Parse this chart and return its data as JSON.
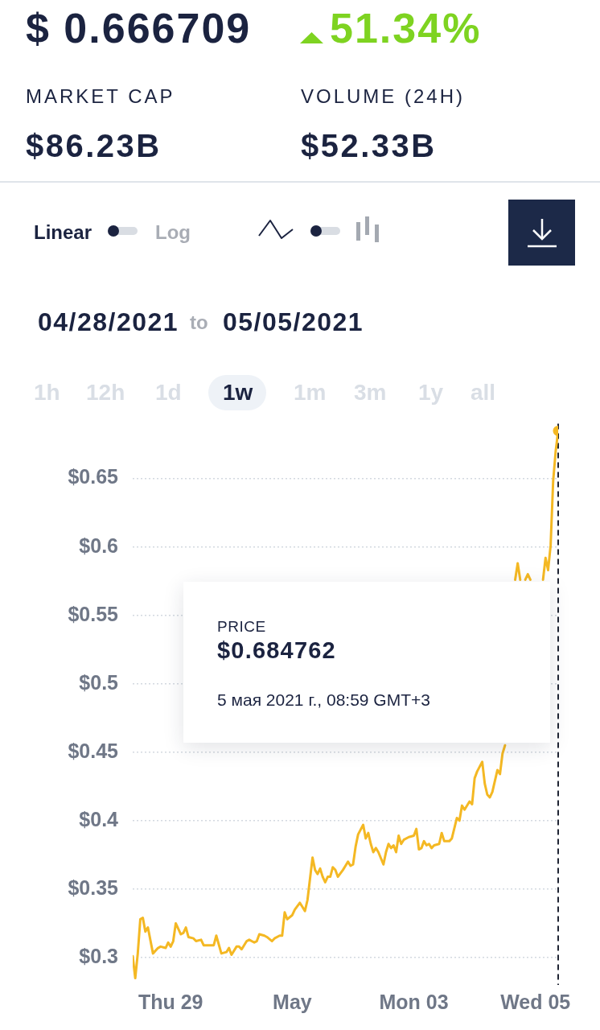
{
  "chart_data": {
    "type": "line",
    "annotations": [
      "$ 0.666709",
      "51.34%",
      "MARKET CAP",
      "$86.23B",
      "VOLUME (24H)",
      "$52.33B",
      "Linear",
      "Log",
      "04/28/2021",
      "to",
      "05/05/2021",
      "1h",
      "12h",
      "1d",
      "1w",
      "1m",
      "3m",
      "1y",
      "all",
      "PRICE",
      "$0.684762",
      "5 мая 2021 г., 08:59 GMT+3"
    ],
    "xlim": [
      "2021-04-28T09:00",
      "2021-05-05T08:59"
    ],
    "xticks": [
      {
        "value": "2021-04-29",
        "label": "Thu 29"
      },
      {
        "value": "2021-05-01",
        "label": "May"
      },
      {
        "value": "2021-05-03",
        "label": "Mon 03"
      },
      {
        "value": "2021-05-05",
        "label": "Wed 05"
      }
    ],
    "ylim": [
      0.28,
      0.69
    ],
    "yticks": [
      {
        "value": 0.3,
        "label": "$0.3"
      },
      {
        "value": 0.35,
        "label": "$0.35"
      },
      {
        "value": 0.4,
        "label": "$0.4"
      },
      {
        "value": 0.45,
        "label": "$0.45"
      },
      {
        "value": 0.5,
        "label": "$0.5"
      },
      {
        "value": 0.55,
        "label": "$0.55"
      },
      {
        "value": 0.6,
        "label": "$0.6"
      },
      {
        "value": 0.65,
        "label": "$0.65"
      }
    ],
    "grid": "y",
    "ref_lines": [
      {
        "axis": "x",
        "value": "2021-05-05T08:59",
        "color": "#1f2433",
        "line_style": "dashed"
      }
    ],
    "series": [
      {
        "color": "#f4b823",
        "x": [
          "2021-04-28T09:00",
          "2021-04-28T10:00",
          "2021-04-28T11:00",
          "2021-04-28T12:00",
          "2021-04-28T13:00",
          "2021-04-28T14:00",
          "2021-04-28T15:00",
          "2021-04-28T17:00",
          "2021-04-28T19:00",
          "2021-04-28T20:00",
          "2021-04-28T22:00",
          "2021-04-28T23:00",
          "2021-04-29T00:00",
          "2021-04-29T01:00",
          "2021-04-29T02:00",
          "2021-04-29T04:00",
          "2021-04-29T05:00",
          "2021-04-29T06:00",
          "2021-04-29T07:00",
          "2021-04-29T09:00",
          "2021-04-29T10:00",
          "2021-04-29T12:00",
          "2021-04-29T13:00",
          "2021-04-29T15:00",
          "2021-04-29T17:00",
          "2021-04-29T18:00",
          "2021-04-29T20:00",
          "2021-04-29T22:00",
          "2021-04-29T23:00",
          "2021-04-30T00:00",
          "2021-04-30T02:00",
          "2021-04-30T03:00",
          "2021-04-30T04:00",
          "2021-04-30T06:00",
          "2021-04-30T07:00",
          "2021-04-30T09:00",
          "2021-04-30T10:00",
          "2021-04-30T11:00",
          "2021-04-30T13:00",
          "2021-04-30T14:00",
          "2021-04-30T16:00",
          "2021-04-30T17:00",
          "2021-04-30T19:00",
          "2021-04-30T20:00",
          "2021-04-30T21:00",
          "2021-04-30T22:00",
          "2021-05-01T00:00",
          "2021-05-01T01:00",
          "2021-05-01T03:00",
          "2021-05-01T04:00",
          "2021-05-01T05:00",
          "2021-05-01T06:00",
          "2021-05-01T08:00",
          "2021-05-01T09:00",
          "2021-05-01T10:00",
          "2021-05-01T11:00",
          "2021-05-01T12:00",
          "2021-05-01T13:00",
          "2021-05-01T14:00",
          "2021-05-01T15:00",
          "2021-05-01T16:00",
          "2021-05-01T17:00",
          "2021-05-01T18:00",
          "2021-05-01T20:00",
          "2021-05-01T21:00",
          "2021-05-01T22:00",
          "2021-05-01T23:00",
          "2021-05-02T00:00",
          "2021-05-02T01:00",
          "2021-05-02T02:00",
          "2021-05-02T04:00",
          "2021-05-02T05:00",
          "2021-05-02T06:00",
          "2021-05-02T07:00",
          "2021-05-02T08:00",
          "2021-05-02T09:00",
          "2021-05-02T10:00",
          "2021-05-02T12:00",
          "2021-05-02T13:00",
          "2021-05-02T14:00",
          "2021-05-02T15:00",
          "2021-05-02T16:00",
          "2021-05-02T17:00",
          "2021-05-02T18:00",
          "2021-05-02T19:00",
          "2021-05-02T20:00",
          "2021-05-02T22:00",
          "2021-05-03T00:00",
          "2021-05-03T01:00",
          "2021-05-03T02:00",
          "2021-05-03T03:00",
          "2021-05-03T04:00",
          "2021-05-03T05:00",
          "2021-05-03T06:00",
          "2021-05-03T07:00",
          "2021-05-03T08:00",
          "2021-05-03T10:00",
          "2021-05-03T11:00",
          "2021-05-03T12:00",
          "2021-05-03T14:00",
          "2021-05-03T15:00",
          "2021-05-03T17:00",
          "2021-05-03T18:00",
          "2021-05-03T19:00",
          "2021-05-03T20:00",
          "2021-05-03T22:00",
          "2021-05-03T23:00",
          "2021-05-04T00:00",
          "2021-05-04T01:00",
          "2021-05-04T03:00",
          "2021-05-04T04:00",
          "2021-05-04T05:00",
          "2021-05-04T06:00",
          "2021-05-04T07:00",
          "2021-05-04T09:00",
          "2021-05-04T10:00",
          "2021-05-04T11:00",
          "2021-05-04T12:00",
          "2021-05-04T13:00",
          "2021-05-04T16:00",
          "2021-05-04T17:00",
          "2021-05-04T18:00",
          "2021-05-04T19:00",
          "2021-05-04T20:00",
          "2021-05-04T21:00",
          "2021-05-04T22:00",
          "2021-05-04T23:00",
          "2021-05-05T03:00",
          "2021-05-05T04:00",
          "2021-05-05T05:00",
          "2021-05-05T06:00",
          "2021-05-05T07:00",
          "2021-05-05T08:00",
          "2021-05-05T08:59"
        ],
        "values": [
          0.301,
          0.285,
          0.303,
          0.328,
          0.329,
          0.319,
          0.322,
          0.303,
          0.307,
          0.308,
          0.307,
          0.311,
          0.308,
          0.312,
          0.325,
          0.317,
          0.318,
          0.322,
          0.315,
          0.314,
          0.312,
          0.313,
          0.309,
          0.309,
          0.309,
          0.316,
          0.303,
          0.304,
          0.307,
          0.302,
          0.308,
          0.308,
          0.306,
          0.312,
          0.313,
          0.311,
          0.312,
          0.317,
          0.316,
          0.315,
          0.312,
          0.314,
          0.316,
          0.316,
          0.333,
          0.328,
          0.331,
          0.335,
          0.34,
          0.337,
          0.334,
          0.342,
          0.373,
          0.364,
          0.361,
          0.365,
          0.359,
          0.355,
          0.359,
          0.359,
          0.366,
          0.364,
          0.359,
          0.364,
          0.367,
          0.37,
          0.367,
          0.368,
          0.381,
          0.39,
          0.397,
          0.387,
          0.391,
          0.383,
          0.377,
          0.38,
          0.377,
          0.368,
          0.377,
          0.383,
          0.38,
          0.382,
          0.377,
          0.389,
          0.383,
          0.386,
          0.388,
          0.389,
          0.394,
          0.379,
          0.38,
          0.385,
          0.382,
          0.383,
          0.38,
          0.382,
          0.383,
          0.391,
          0.385,
          0.385,
          0.387,
          0.402,
          0.4,
          0.411,
          0.408,
          0.414,
          0.412,
          0.431,
          0.436,
          0.443,
          0.427,
          0.419,
          0.417,
          0.421,
          0.437,
          0.434,
          0.449,
          0.455,
          null,
          0.576,
          0.588,
          0.576,
          null,
          0.576,
          0.58,
          0.576,
          null,
          0.576,
          0.592,
          0.583,
          0.601,
          0.648,
          0.67,
          0.684762
        ]
      },
      {
        "type": "scatter",
        "color": "#f4b823",
        "marker": "circle",
        "x": [
          "2021-05-05T08:59"
        ],
        "values": [
          0.684762
        ]
      }
    ]
  }
}
